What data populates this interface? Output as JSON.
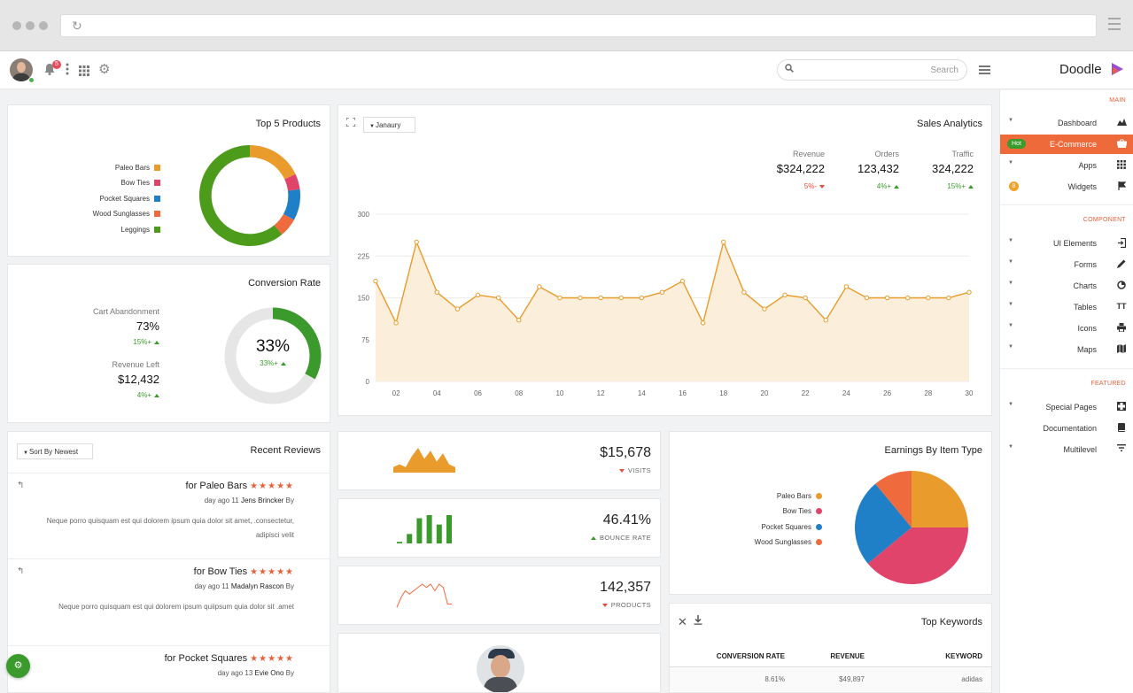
{
  "topbar": {
    "notification_count": "5",
    "search_placeholder": "Search",
    "brand": "Doodle"
  },
  "sidebar": {
    "sections": [
      {
        "title": "MAIN",
        "items": [
          {
            "label": "Dashboard",
            "icon": "chart-area-icon"
          },
          {
            "label": "E-Commerce",
            "icon": "basket-icon",
            "badge": "Hot",
            "active": true
          },
          {
            "label": "Apps",
            "icon": "grid-icon"
          },
          {
            "label": "Widgets",
            "icon": "flag-icon",
            "badge": "8"
          }
        ]
      },
      {
        "title": "COMPONENT",
        "items": [
          {
            "label": "UI Elements",
            "icon": "sign-in-icon"
          },
          {
            "label": "Forms",
            "icon": "pencil-icon"
          },
          {
            "label": "Charts",
            "icon": "pie-icon"
          },
          {
            "label": "Tables",
            "icon": "text-height-icon"
          },
          {
            "label": "Icons",
            "icon": "printer-icon"
          },
          {
            "label": "Maps",
            "icon": "map-icon"
          }
        ]
      },
      {
        "title": "FEATURED",
        "items": [
          {
            "label": "Special Pages",
            "icon": "crop-icon"
          },
          {
            "label": "Documentation",
            "icon": "book-icon"
          },
          {
            "label": "Multilevel",
            "icon": "filter-icon"
          }
        ]
      }
    ]
  },
  "top_products": {
    "title": "Top 5 Products",
    "colors": [
      "#e99b2b",
      "#e0446a",
      "#1f7fc7",
      "#ef6a3c",
      "#4d9b1a"
    ],
    "chart_data": {
      "type": "pie",
      "categories": [
        "Paleo Bars",
        "Bow Ties",
        "Pocket Squares",
        "Wood Sunglasses",
        "Leggings"
      ],
      "values": [
        18,
        5,
        10,
        6,
        61
      ]
    }
  },
  "conversion": {
    "title": "Conversion Rate",
    "cart_label": "Cart Abandonment",
    "cart_value": "73%",
    "cart_change": "15%+",
    "revenue_label": "Revenue Left",
    "revenue_value": "$12,432",
    "revenue_change": "4%+",
    "gauge_value": "33%",
    "gauge_change": "33%+",
    "gauge_fraction": 0.33
  },
  "sales": {
    "title": "Sales Analytics",
    "month": "Janaury",
    "stats": [
      {
        "label": "Revenue",
        "value": "$324,222",
        "change": "5%-",
        "dir": "down"
      },
      {
        "label": "Orders",
        "value": "123,432",
        "change": "4%+",
        "dir": "up"
      },
      {
        "label": "Traffic",
        "value": "324,222",
        "change": "15%+",
        "dir": "up"
      }
    ],
    "chart_data": {
      "type": "area",
      "x": [
        1,
        2,
        3,
        4,
        5,
        6,
        7,
        8,
        9,
        10,
        11,
        12,
        13,
        14,
        15,
        16,
        17,
        18,
        19,
        20,
        21,
        22,
        23,
        24,
        25,
        26,
        27,
        28,
        29,
        30
      ],
      "series": [
        {
          "values": [
            180,
            105,
            250,
            160,
            130,
            155,
            150,
            110,
            170,
            150,
            150,
            150,
            150,
            150,
            160,
            180,
            105,
            250,
            160,
            130,
            155,
            150,
            110,
            170,
            150,
            150,
            150,
            150,
            150,
            160
          ]
        }
      ],
      "x_tick_labels": [
        "02",
        "04",
        "06",
        "08",
        "10",
        "12",
        "14",
        "16",
        "18",
        "20",
        "22",
        "24",
        "26",
        "28",
        "30"
      ],
      "y_ticks": [
        0,
        75,
        150,
        225,
        300
      ],
      "ylim": [
        0,
        300
      ],
      "color": "#e99b2b",
      "fill": "#fbeeda"
    }
  },
  "reviews": {
    "title": "Recent Reviews",
    "sort_label": "Sort By Newest",
    "items": [
      {
        "title": "for Paleo Bars",
        "stars": "★★★★★",
        "age": "day ago 11",
        "author": "Jens Brincker",
        "by": "By",
        "text": "Neque porro quisquam est qui dolorem ipsum quia dolor sit amet, .consectetur, adipisci velit"
      },
      {
        "title": "for Bow Ties",
        "stars": "★★★★★",
        "age": "day ago 11",
        "author": "Madalyn Rascon",
        "by": "By",
        "text": "Neque porro quisquam est qui dolorem ipsum quiipsum quia dolor sit .amet"
      },
      {
        "title": "for Pocket Squares",
        "stars": "★★★★★",
        "age": "day ago 13",
        "author": "Evie Ono",
        "by": "By",
        "text": ""
      }
    ]
  },
  "kpis": [
    {
      "value": "$15,678",
      "label": "VISITS",
      "dir": "down",
      "spark": "area",
      "color": "#e99b2b",
      "spark_data": [
        2,
        3,
        2,
        6,
        9,
        5,
        8,
        4,
        7,
        3,
        2
      ]
    },
    {
      "value": "46.41%",
      "label": "BOUNCE RATE",
      "dir": "up",
      "spark": "bar",
      "color": "#3a9a2c",
      "spark_data": [
        0.5,
        3,
        8,
        9,
        6,
        9
      ]
    },
    {
      "value": "142,357",
      "label": "PRODUCTS",
      "dir": "down",
      "spark": "line",
      "color": "#ef6a3c",
      "spark_data": [
        1,
        4,
        6,
        5,
        6,
        7,
        8,
        7,
        8,
        6,
        8,
        7,
        2,
        2
      ]
    }
  ],
  "earnings": {
    "title": "Earnings By Item Type",
    "colors": [
      "#e99b2b",
      "#e0446a",
      "#1f7fc7",
      "#ef6a3c"
    ],
    "chart_data": {
      "type": "pie",
      "categories": [
        "Paleo Bars",
        "Bow Ties",
        "Pocket Squares",
        "Wood Sunglasses"
      ],
      "values": [
        25,
        39,
        25,
        11
      ]
    }
  },
  "keywords": {
    "title": "Top Keywords",
    "columns": [
      "CONVERSION RATE",
      "REVENUE",
      "KEYWORD"
    ],
    "rows": [
      [
        "8.61%",
        "$49,897",
        "adidas"
      ]
    ]
  }
}
